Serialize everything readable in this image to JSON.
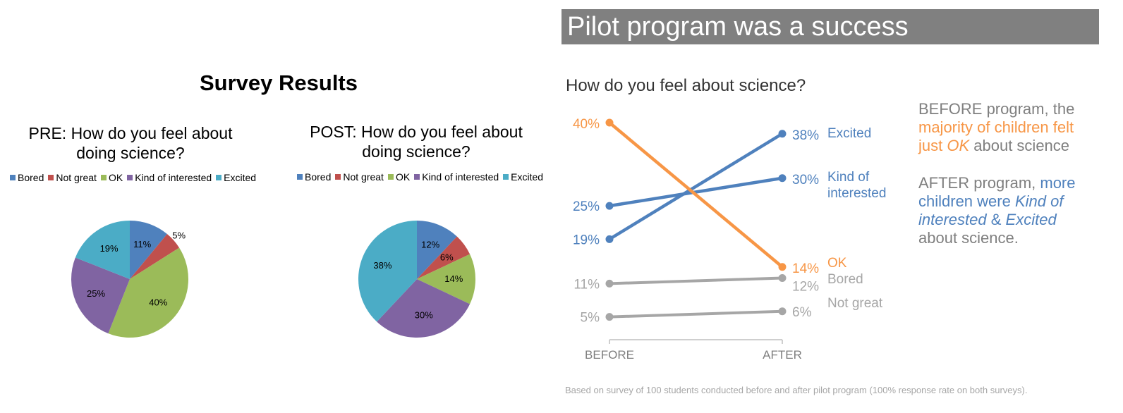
{
  "left": {
    "title": "Survey Results",
    "legend": [
      {
        "label": "Bored",
        "color": "#4f81bd"
      },
      {
        "label": "Not great",
        "color": "#c0504d"
      },
      {
        "label": "OK",
        "color": "#9bbb59"
      },
      {
        "label": "Kind of interested",
        "color": "#8064a2"
      },
      {
        "label": "Excited",
        "color": "#4bacc6"
      }
    ]
  },
  "right": {
    "banner": "Pilot program was a success",
    "subtitle": "How do you feel about science?",
    "note": {
      "p1_a": "BEFORE program, the ",
      "p1_b": "majority of children felt just ",
      "p1_c": "OK",
      "p1_d": " about science",
      "p2_a": "AFTER program, ",
      "p2_b": "more children were ",
      "p2_c": "Kind of interested",
      "p2_d": " & ",
      "p2_e": "Excited",
      "p2_f": "about science."
    },
    "footnote": "Based on survey of 100 students conducted before and after pilot program (100% response rate on both surveys)."
  },
  "chart_data": [
    {
      "type": "pie",
      "title": "PRE: How do you feel about doing science?",
      "categories": [
        "Bored",
        "Not great",
        "OK",
        "Kind of interested",
        "Excited"
      ],
      "values": [
        11,
        5,
        40,
        25,
        19
      ],
      "labels": [
        "11%",
        "5%",
        "40%",
        "25%",
        "19%"
      ],
      "colors": [
        "#4f81bd",
        "#c0504d",
        "#9bbb59",
        "#8064a2",
        "#4bacc6"
      ],
      "legend_position": "top"
    },
    {
      "type": "pie",
      "title": "POST: How do you feel about doing science?",
      "categories": [
        "Bored",
        "Not great",
        "OK",
        "Kind of interested",
        "Excited"
      ],
      "values": [
        12,
        6,
        14,
        30,
        38
      ],
      "labels": [
        "12%",
        "6%",
        "14%",
        "30%",
        "38%"
      ],
      "colors": [
        "#4f81bd",
        "#c0504d",
        "#9bbb59",
        "#8064a2",
        "#4bacc6"
      ],
      "legend_position": "top"
    },
    {
      "type": "line",
      "title": "How do you feel about science?",
      "x": [
        "BEFORE",
        "AFTER"
      ],
      "series": [
        {
          "name": "Excited",
          "values": [
            19,
            38
          ],
          "labels": [
            "19%",
            "38%"
          ],
          "color": "#4f81bd",
          "emphasis": true
        },
        {
          "name": "Kind of interested",
          "values": [
            25,
            30
          ],
          "labels": [
            "25%",
            "30%"
          ],
          "color": "#4f81bd",
          "emphasis": true
        },
        {
          "name": "OK",
          "values": [
            40,
            14
          ],
          "labels": [
            "40%",
            "14%"
          ],
          "color": "#f79646",
          "emphasis": true
        },
        {
          "name": "Bored",
          "values": [
            11,
            12
          ],
          "labels": [
            "11%",
            "12%"
          ],
          "color": "#a6a6a6",
          "emphasis": false
        },
        {
          "name": "Not great",
          "values": [
            5,
            6
          ],
          "labels": [
            "5%",
            "6%"
          ],
          "color": "#a6a6a6",
          "emphasis": false
        }
      ],
      "ylim": [
        0,
        40
      ],
      "grid": false
    }
  ]
}
